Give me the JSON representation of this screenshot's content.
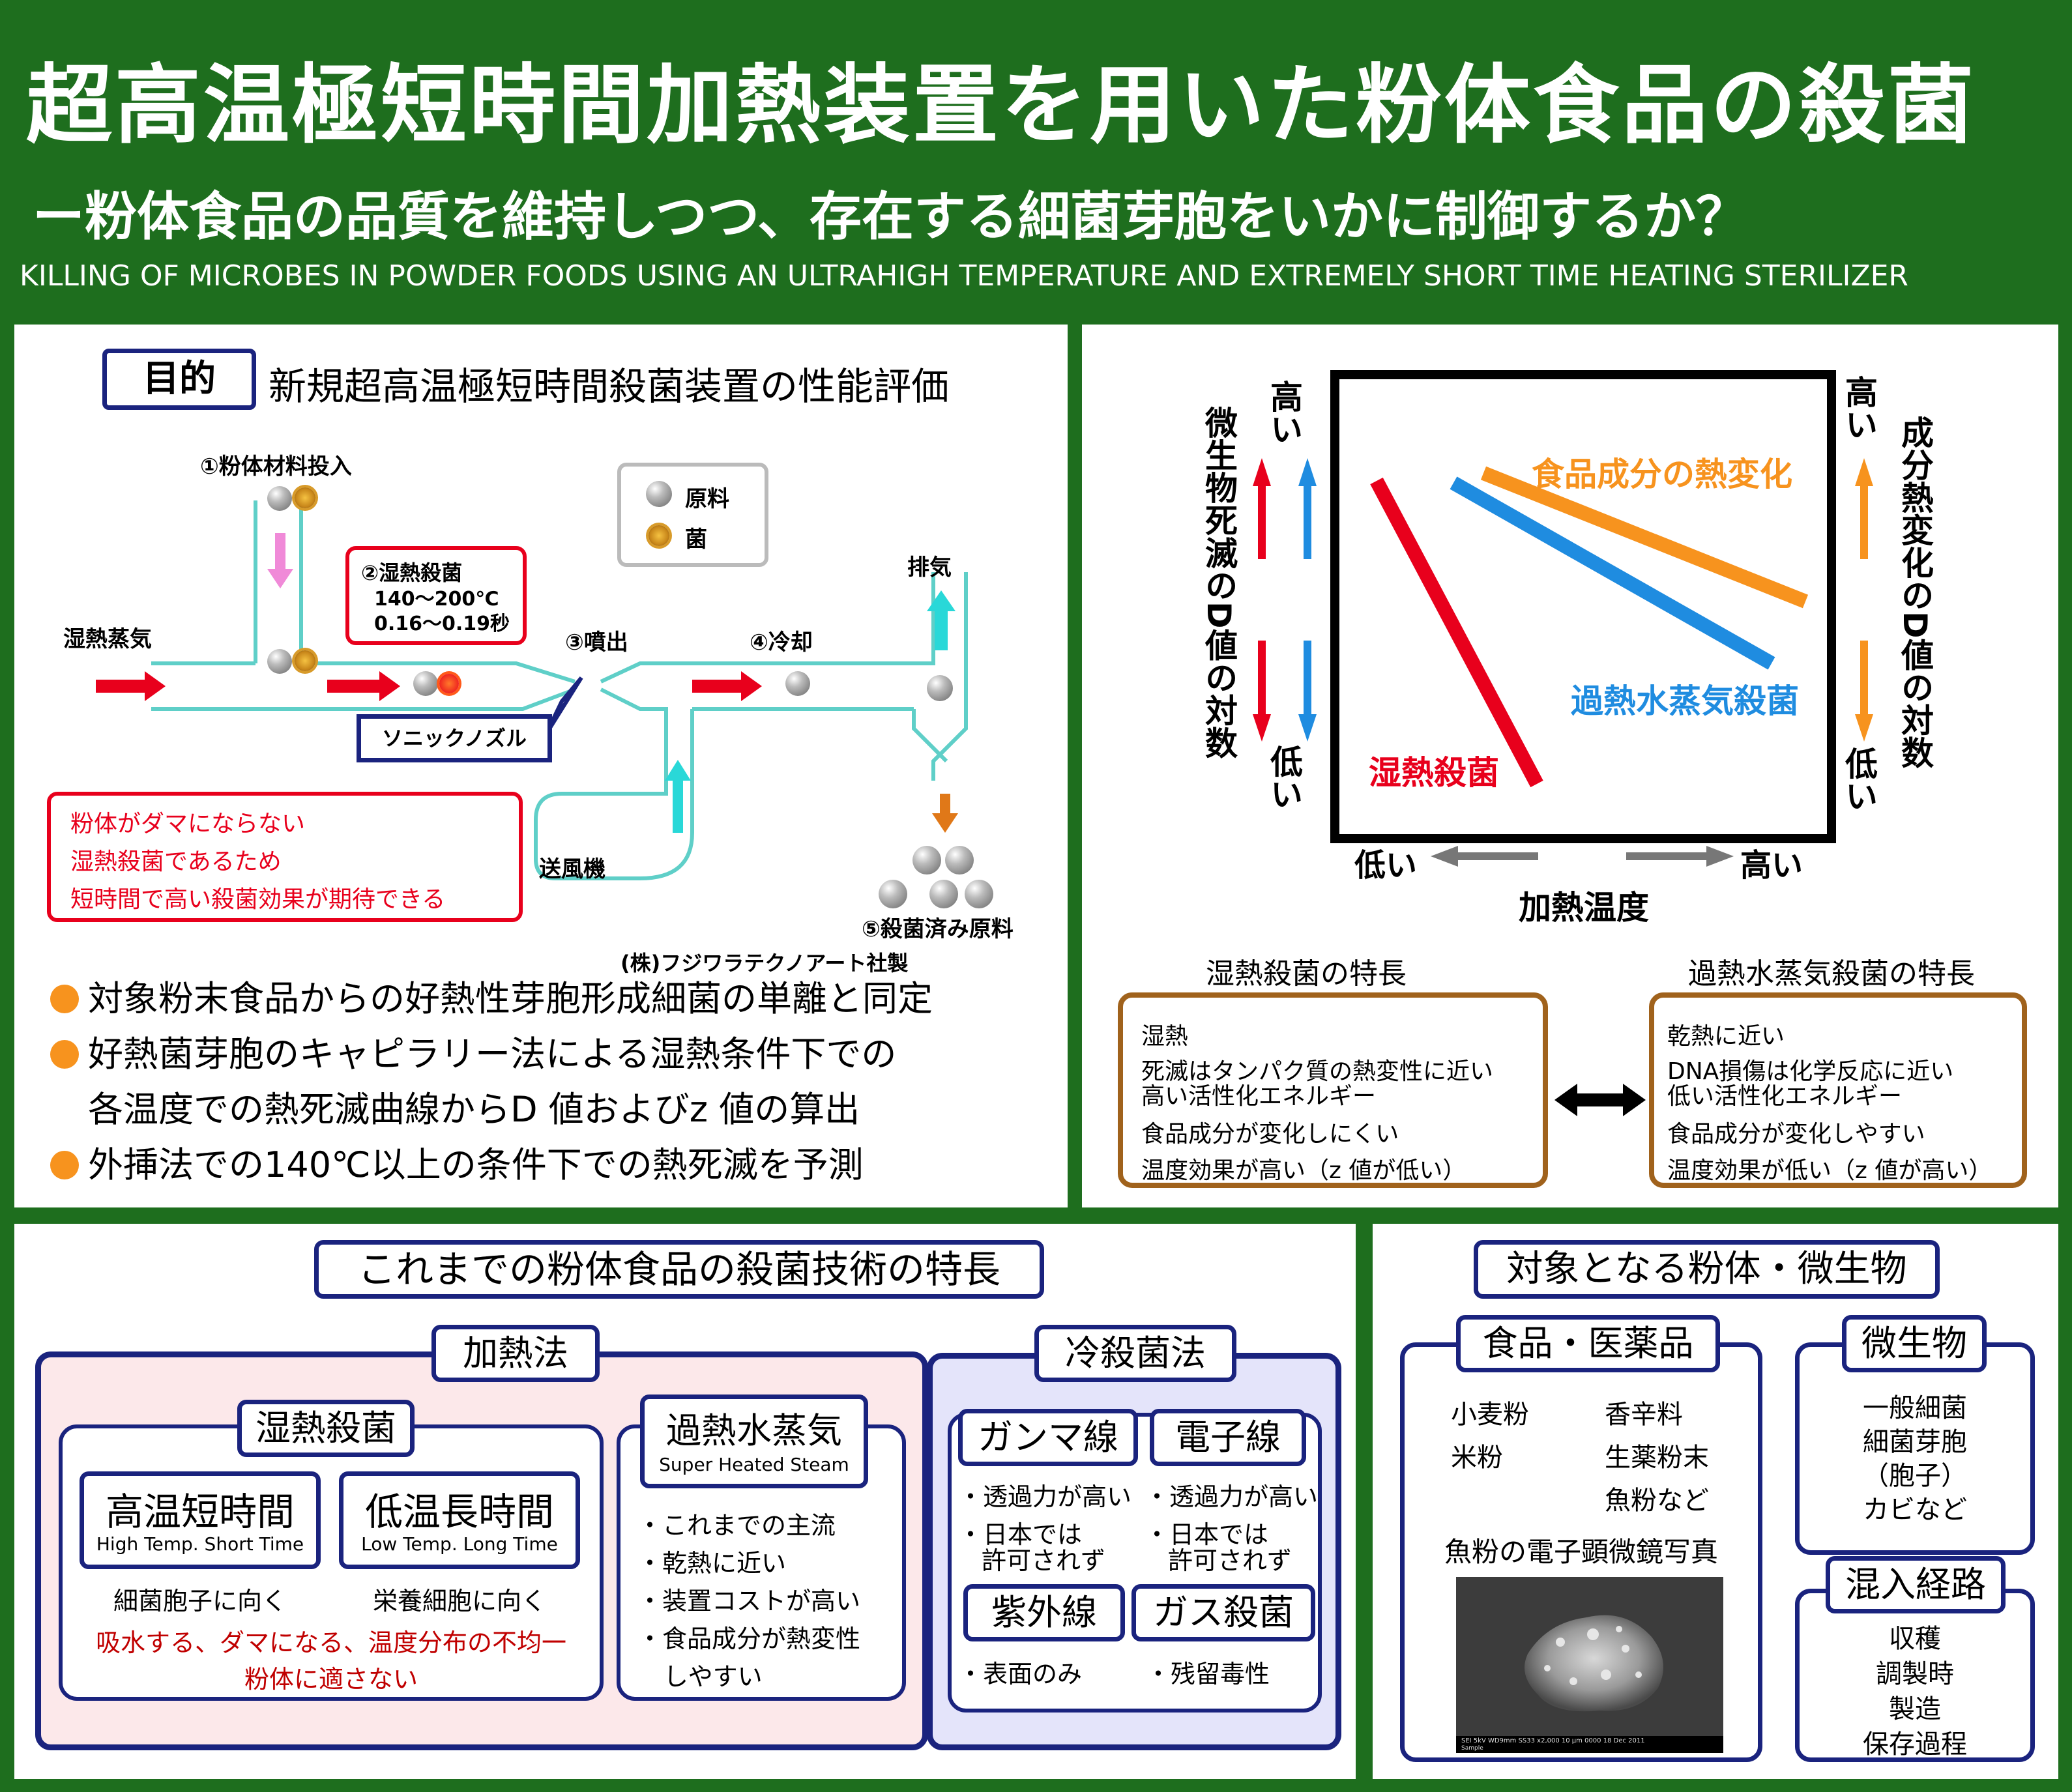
{
  "header": {
    "title": "超高温極短時間加熱装置を用いた粉体食品の殺菌",
    "subtitle": "ー粉体食品の品質を維持しつつ、存在する細菌芽胞をいかに制御するか？",
    "english": "KILLING OF MICROBES IN POWDER FOODS USING AN ULTRAHIGH TEMPERATURE AND EXTREMELY SHORT TIME HEATING STERILIZER"
  },
  "purpose": {
    "label": "目的",
    "text": "新規超高温極短時間殺菌装置の性能評価"
  },
  "apparatus": {
    "step1": "①粉体材料投入",
    "steam": "湿熱蒸気",
    "step2_title": "②湿熱殺菌",
    "step2_temp": "140～200℃",
    "step2_time": "0.16～0.19秒",
    "step3": "③噴出",
    "step4": "④冷却",
    "exhaust": "排気",
    "nozzle": "ソニックノズル",
    "blower": "送風機",
    "step5": "⑤殺菌済み原料",
    "maker": "(株)フジワラテクノアート社製",
    "legend_material": "原料",
    "legend_bacteria": "菌",
    "note_lines": [
      "粉体がダマにならない",
      "湿熱殺菌であるため",
      "短時間で高い殺菌効果が期待できる"
    ]
  },
  "bullets": [
    "対象粉末食品からの好熱性芽胞形成細菌の単離と同定",
    "好熱菌芽胞のキャピラリー法による湿熱条件下での",
    "各温度での熱死滅曲線からD 値およびz 値の算出",
    "外挿法での140℃以上の条件下での熱死滅を予測"
  ],
  "dchart": {
    "left_axis": "微生物死滅のD値の対数",
    "right_axis": "成分熱変化のD値の対数",
    "high": "高い",
    "low": "低い",
    "x_axis": "加熱温度",
    "x_low": "低い",
    "x_high": "高い",
    "line_food": "食品成分の熱変化",
    "line_superheat": "過熱水蒸気殺菌",
    "line_moist": "湿熱殺菌",
    "colors": {
      "moist": "#e8001c",
      "superheat": "#1f8ce0",
      "food": "#f7931e"
    }
  },
  "features": {
    "moist_title": "湿熱殺菌の特長",
    "moist_lines": [
      "湿熱",
      "死滅はタンパク質の熱変性に近い",
      "高い活性化エネルギー",
      "食品成分が変化しにくい",
      "温度効果が高い（z 値が低い）"
    ],
    "super_title": "過熱水蒸気殺菌の特長",
    "super_lines": [
      "乾熱に近い",
      "DNA損傷は化学反応に近い",
      "低い活性化エネルギー",
      "食品成分が変化しやすい",
      "温度効果が低い（z 値が高い）"
    ]
  },
  "tech": {
    "title": "これまでの粉体食品の殺菌技術の特長",
    "heating": "加熱法",
    "moist": "湿熱殺菌",
    "htst": "高温短時間",
    "htst_en": "High Temp. Short Time",
    "ltlt": "低温長時間",
    "ltlt_en": "Low Temp. Long Time",
    "htst_note": "細菌胞子に向く",
    "ltlt_note": "栄養細胞に向く",
    "moist_problem1": "吸水する、ダマになる、温度分布の不均一",
    "moist_problem2": "粉体に適さない",
    "superheated": "過熱水蒸気",
    "superheated_en": "Super Heated Steam",
    "superheated_notes": [
      "・これまでの主流",
      "・乾熱に近い",
      "・装置コストが高い",
      "・食品成分が熱変性",
      "しやすい"
    ],
    "cold": "冷殺菌法",
    "gamma": "ガンマ線",
    "ebeam": "電子線",
    "gamma_notes": [
      "・透過力が高い",
      "・日本では",
      "許可されず"
    ],
    "ebeam_notes": [
      "・透過力が高い",
      "・日本では",
      "許可されず"
    ],
    "uv": "紫外線",
    "gas": "ガス殺菌",
    "uv_note": "・表面のみ",
    "gas_note": "・残留毒性"
  },
  "targets": {
    "title": "対象となる粉体・微生物",
    "food": "食品・医薬品",
    "food_items_left": [
      "小麦粉",
      "米粉"
    ],
    "food_items_right": [
      "香辛料",
      "生薬粉末",
      "魚粉など"
    ],
    "sem_caption": "魚粉の電子顕微鏡写真",
    "sem_footer": "SEI  5kV  WD9mm  SS33  x2,000  10 μm  0000  18 Dec 2011",
    "sem_footer2": "Sample",
    "microbes": "微生物",
    "microbe_items": [
      "一般細菌",
      "細菌芽胞",
      "（胞子）",
      "カビなど"
    ],
    "route": "混入経路",
    "route_items": [
      "収穫",
      "調製時",
      "製造",
      "保存過程"
    ]
  }
}
